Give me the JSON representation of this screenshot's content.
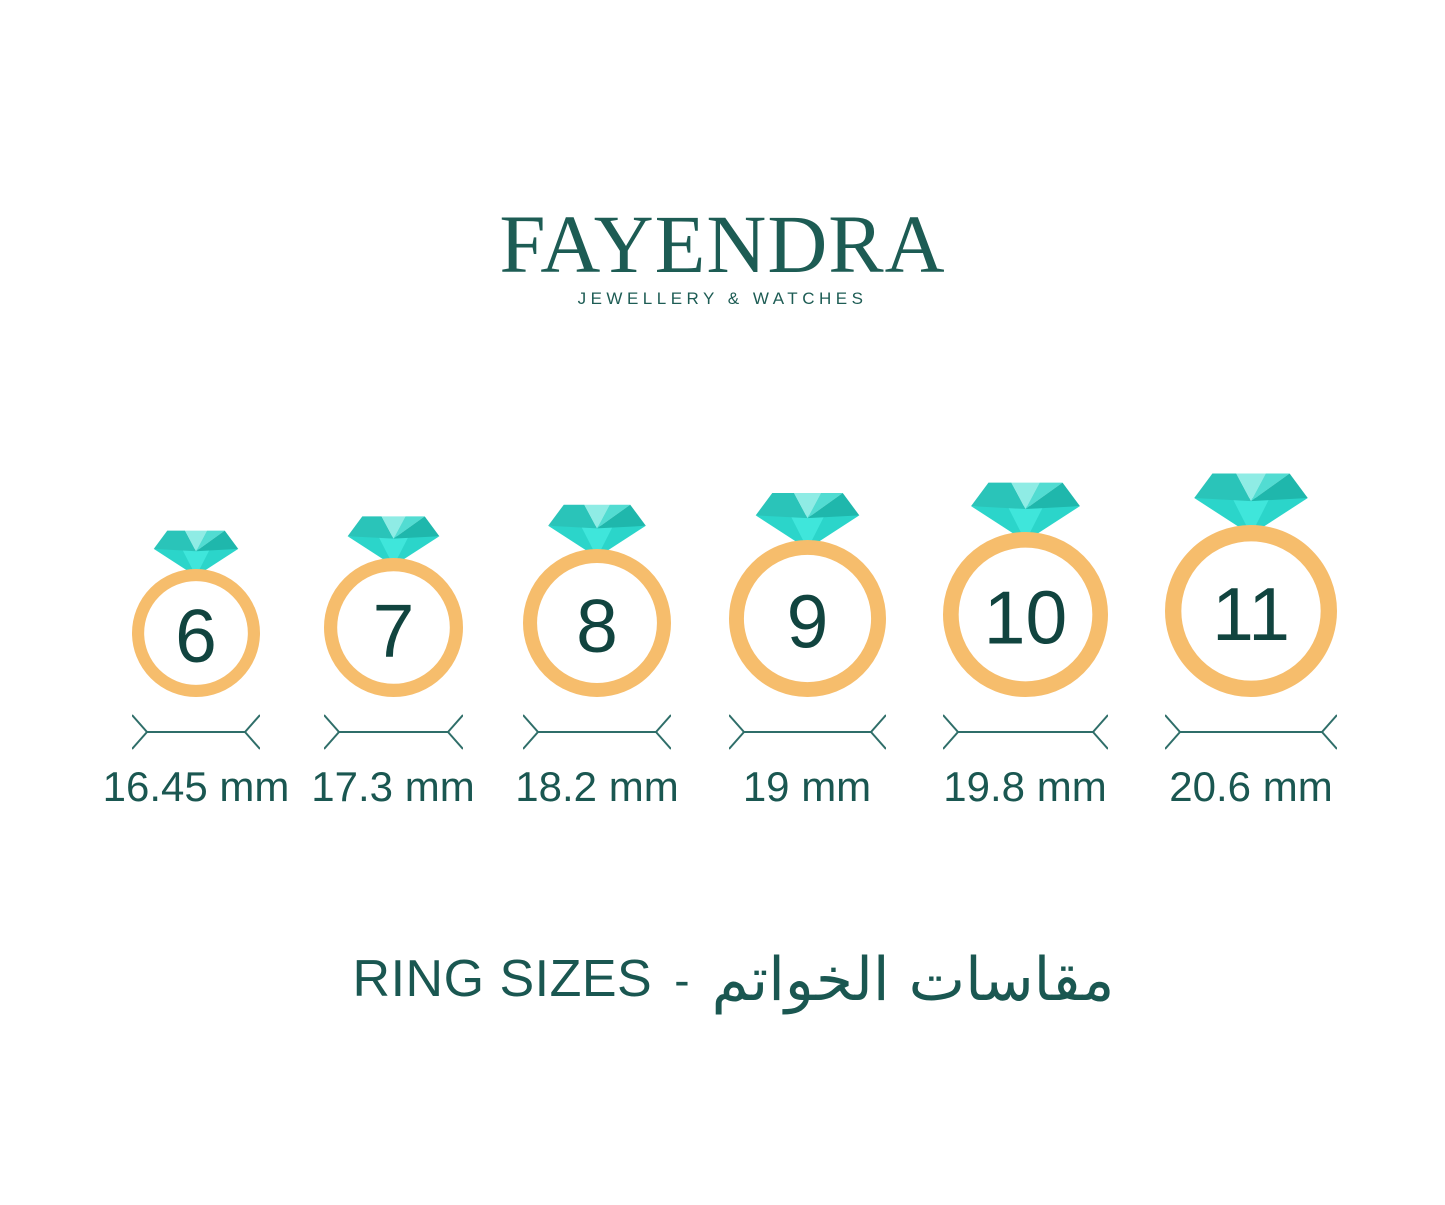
{
  "brand": {
    "name": "FAYENDRA",
    "tagline": "JEWELLERY & WATCHES"
  },
  "rings": [
    {
      "size": "6",
      "diameter_label": "16.45 mm"
    },
    {
      "size": "7",
      "diameter_label": "17.3 mm"
    },
    {
      "size": "8",
      "diameter_label": "18.2 mm"
    },
    {
      "size": "9",
      "diameter_label": "19 mm"
    },
    {
      "size": "10",
      "diameter_label": "19.8 mm"
    },
    {
      "size": "11",
      "diameter_label": "20.6 mm"
    }
  ],
  "footer": {
    "title_en": "RING SIZES",
    "separator": "-",
    "title_ar": "مقاسات الخواتم"
  },
  "colors": {
    "logo": "#1D5C54",
    "text": "#1A5751",
    "number": "#11443F",
    "measure": "#2F6E69",
    "band": "#F6BD6C",
    "diamond_pavilion": "#2BD5CA",
    "diamond_pavilion_light": "#3FE6DB",
    "diamond_crown_left": "#2AC4B9",
    "diamond_crown_light": "#8FECE5",
    "diamond_crown_right": "#52DCD2",
    "diamond_crown_dark": "#1FB7AC"
  }
}
